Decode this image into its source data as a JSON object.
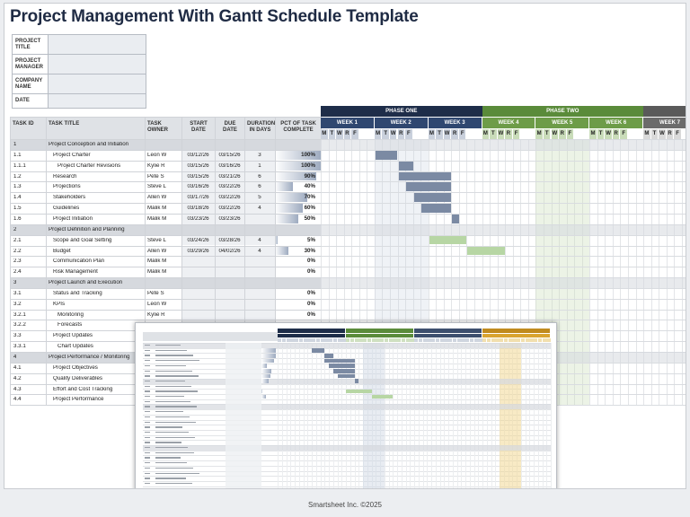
{
  "title": "Project Management With Gantt Schedule Template",
  "info_fields": [
    "PROJECT TITLE",
    "PROJECT MANAGER",
    "COMPANY NAME",
    "DATE"
  ],
  "columns": {
    "id": "TASK ID",
    "title": "TASK TITLE",
    "owner": "TASK OWNER",
    "start": "START DATE",
    "due": "DUE DATE",
    "duration": "DURATION IN DAYS",
    "pct": "PCT OF TASK COMPLETE"
  },
  "phases": [
    {
      "name": "PHASE ONE",
      "color": "#1e2d49"
    },
    {
      "name": "PHASE TWO",
      "color": "#5a8b3a"
    },
    {
      "name": "",
      "color": "#5a5a5a"
    }
  ],
  "weeks": [
    {
      "name": "WEEK 1",
      "color": "#2f4770"
    },
    {
      "name": "WEEK 2",
      "color": "#2f4770"
    },
    {
      "name": "WEEK 3",
      "color": "#2f4770"
    },
    {
      "name": "WEEK 4",
      "color": "#6d9c48"
    },
    {
      "name": "WEEK 5",
      "color": "#6d9c48"
    },
    {
      "name": "WEEK 6",
      "color": "#6d9c48"
    },
    {
      "name": "WEEK 7",
      "color": "#6b6b6b"
    }
  ],
  "day_letters": [
    "M",
    "T",
    "W",
    "R",
    "F"
  ],
  "rows": [
    {
      "id": "1",
      "title": "Project Conception and Initiation",
      "phase": true
    },
    {
      "id": "1.1",
      "title": "Project Charter",
      "indent": 1,
      "owner": "Leon W",
      "start": "03/12/26",
      "due": "03/15/26",
      "duration": "3",
      "pct": "100%",
      "pct_value": 100,
      "bar": {
        "week": 2,
        "from": 0,
        "to": 3,
        "color": "#7b8aa3"
      }
    },
    {
      "id": "1.1.1",
      "title": "Project Charter Revisions",
      "indent": 2,
      "owner": "Kylie R",
      "start": "03/15/26",
      "due": "03/16/26",
      "duration": "1",
      "pct": "100%",
      "pct_value": 100,
      "bar": {
        "week": 2,
        "from": 3,
        "to": 5,
        "color": "#7b8aa3"
      }
    },
    {
      "id": "1.2",
      "title": "Research",
      "indent": 1,
      "owner": "Pete S",
      "start": "03/15/26",
      "due": "03/21/26",
      "duration": "6",
      "pct": "90%",
      "pct_value": 90,
      "bar": {
        "week": 2,
        "from": 3,
        "to": 10,
        "color": "#7b8aa3"
      }
    },
    {
      "id": "1.3",
      "title": "Projections",
      "indent": 1,
      "owner": "Steve L",
      "start": "03/16/26",
      "due": "03/22/26",
      "duration": "6",
      "pct": "40%",
      "pct_value": 40,
      "bar": {
        "week": 2,
        "from": 4,
        "to": 10,
        "color": "#7b8aa3"
      }
    },
    {
      "id": "1.4",
      "title": "Stakeholders",
      "indent": 1,
      "owner": "Allen W",
      "start": "03/17/26",
      "due": "03/22/26",
      "duration": "5",
      "pct": "70%",
      "pct_value": 70,
      "bar": {
        "week": 2,
        "from": 5,
        "to": 10,
        "color": "#7b8aa3"
      }
    },
    {
      "id": "1.5",
      "title": "Guidelines",
      "indent": 1,
      "owner": "Malik M",
      "start": "03/18/26",
      "due": "03/22/26",
      "duration": "4",
      "pct": "60%",
      "pct_value": 60,
      "bar": {
        "week": 2,
        "from": 6,
        "to": 10,
        "color": "#7b8aa3"
      }
    },
    {
      "id": "1.6",
      "title": "Project Initiation",
      "indent": 1,
      "owner": "Malik M",
      "start": "03/23/26",
      "due": "03/23/26",
      "duration": "",
      "pct": "50%",
      "pct_value": 50,
      "bar": {
        "week": 2,
        "from": 10,
        "to": 11,
        "color": "#7b8aa3"
      }
    },
    {
      "id": "2",
      "title": "Project Definition and Planning",
      "phase": true
    },
    {
      "id": "2.1",
      "title": "Scope and Goal Setting",
      "indent": 1,
      "owner": "Steve L",
      "start": "03/24/26",
      "due": "03/28/26",
      "duration": "4",
      "pct": "5%",
      "pct_value": 5,
      "bar": {
        "week": 3,
        "from": 0,
        "to": 5,
        "color": "#b7d6a4"
      }
    },
    {
      "id": "2.2",
      "title": "Budget",
      "indent": 1,
      "owner": "Allen W",
      "start": "03/29/26",
      "due": "04/02/26",
      "duration": "4",
      "pct": "30%",
      "pct_value": 30,
      "bar": {
        "week": 3,
        "from": 5,
        "to": 10,
        "color": "#b7d6a4"
      }
    },
    {
      "id": "2.3",
      "title": "Communication Plan",
      "indent": 1,
      "owner": "Malik M",
      "start": "",
      "due": "",
      "duration": "",
      "pct": "0%",
      "pct_value": 0
    },
    {
      "id": "2.4",
      "title": "Risk Management",
      "indent": 1,
      "owner": "Malik M",
      "start": "",
      "due": "",
      "duration": "",
      "pct": "0%",
      "pct_value": 0
    },
    {
      "id": "3",
      "title": "Project Launch and Execution",
      "phase": true
    },
    {
      "id": "3.1",
      "title": "Status and Tracking",
      "indent": 1,
      "owner": "Pete S",
      "start": "",
      "due": "",
      "duration": "",
      "pct": "0%",
      "pct_value": 0
    },
    {
      "id": "3.2",
      "title": "KPIs",
      "indent": 1,
      "owner": "Leon W",
      "start": "",
      "due": "",
      "duration": "",
      "pct": "0%",
      "pct_value": 0
    },
    {
      "id": "3.2.1",
      "title": "Monitoring",
      "indent": 2,
      "owner": "Kylie R",
      "start": "",
      "due": "",
      "duration": "",
      "pct": "0%",
      "pct_value": 0
    },
    {
      "id": "3.2.2",
      "title": "Forecasts",
      "indent": 2,
      "owner": "",
      "start": "",
      "due": "",
      "duration": "",
      "pct": "",
      "pct_value": 0
    },
    {
      "id": "3.3",
      "title": "Project Updates",
      "indent": 1,
      "owner": "",
      "start": "",
      "due": "",
      "duration": "",
      "pct": "",
      "pct_value": 0
    },
    {
      "id": "3.3.1",
      "title": "Chart Updates",
      "indent": 2,
      "owner": "",
      "start": "",
      "due": "",
      "duration": "",
      "pct": "",
      "pct_value": 0
    },
    {
      "id": "4",
      "title": "Project Performance / Monitoring",
      "phase": true
    },
    {
      "id": "4.1",
      "title": "Project Objectives",
      "indent": 1,
      "owner": "",
      "start": "",
      "due": "",
      "duration": "",
      "pct": "",
      "pct_value": 0
    },
    {
      "id": "4.2",
      "title": "Quality Deliverables",
      "indent": 1,
      "owner": "",
      "start": "",
      "due": "",
      "duration": "",
      "pct": "",
      "pct_value": 0
    },
    {
      "id": "4.3",
      "title": "Effort and Cost Tracking",
      "indent": 1,
      "owner": "",
      "start": "",
      "due": "",
      "duration": "",
      "pct": "",
      "pct_value": 0
    },
    {
      "id": "4.4",
      "title": "Project Performance",
      "indent": 1,
      "owner": "",
      "start": "",
      "due": "",
      "duration": "",
      "pct": "",
      "pct_value": 0
    }
  ],
  "inset_phases": [
    {
      "name": "PHASE ONE",
      "color": "#1e2d49"
    },
    {
      "name": "PHASE TWO",
      "color": "#5a8b3a"
    },
    {
      "name": "PHASE THREE",
      "color": "#3d4f6e"
    },
    {
      "name": "PHASE FOUR",
      "color": "#c08a1e"
    }
  ],
  "footer": "Smartsheet Inc. ©2025"
}
